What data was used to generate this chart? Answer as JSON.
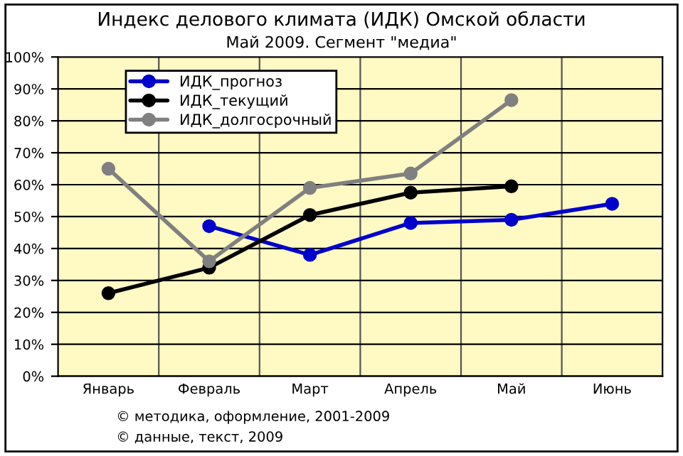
{
  "chart_data": {
    "type": "line",
    "title": "Индекс делового климата (ИДК) Омской области",
    "subtitle": "Май 2009. Сегмент \"медиа\"",
    "categories": [
      "Январь",
      "Февраль",
      "Март",
      "Апрель",
      "Май",
      "Июнь"
    ],
    "series": [
      {
        "name": "ИДК_прогноз",
        "color": "#0000cc",
        "values": [
          null,
          47,
          38,
          48,
          49,
          54
        ]
      },
      {
        "name": "ИДК_текущий",
        "color": "#000000",
        "values": [
          26,
          34,
          50.5,
          57.5,
          59.5,
          null
        ]
      },
      {
        "name": "ИДК_долгосрочный",
        "color": "#808080",
        "values": [
          65,
          36,
          59,
          63.5,
          86.5,
          null
        ]
      }
    ],
    "ylim": [
      0,
      100
    ],
    "yticks": [
      {
        "value": 0,
        "label": "0%"
      },
      {
        "value": 10,
        "label": "10%"
      },
      {
        "value": 20,
        "label": "20%"
      },
      {
        "value": 30,
        "label": "30%"
      },
      {
        "value": 40,
        "label": "40%"
      },
      {
        "value": 50,
        "label": "50%"
      },
      {
        "value": 60,
        "label": "60%"
      },
      {
        "value": 70,
        "label": "70%"
      },
      {
        "value": 80,
        "label": "80%"
      },
      {
        "value": 90,
        "label": "90%"
      },
      {
        "value": 100,
        "label": "100%"
      }
    ],
    "grid": true,
    "legend": "top left",
    "marker": "circle",
    "line_style": "solid",
    "annotations": [
      "© методика, оформление, 2001-2009",
      "© данные, текст, 2009"
    ]
  }
}
